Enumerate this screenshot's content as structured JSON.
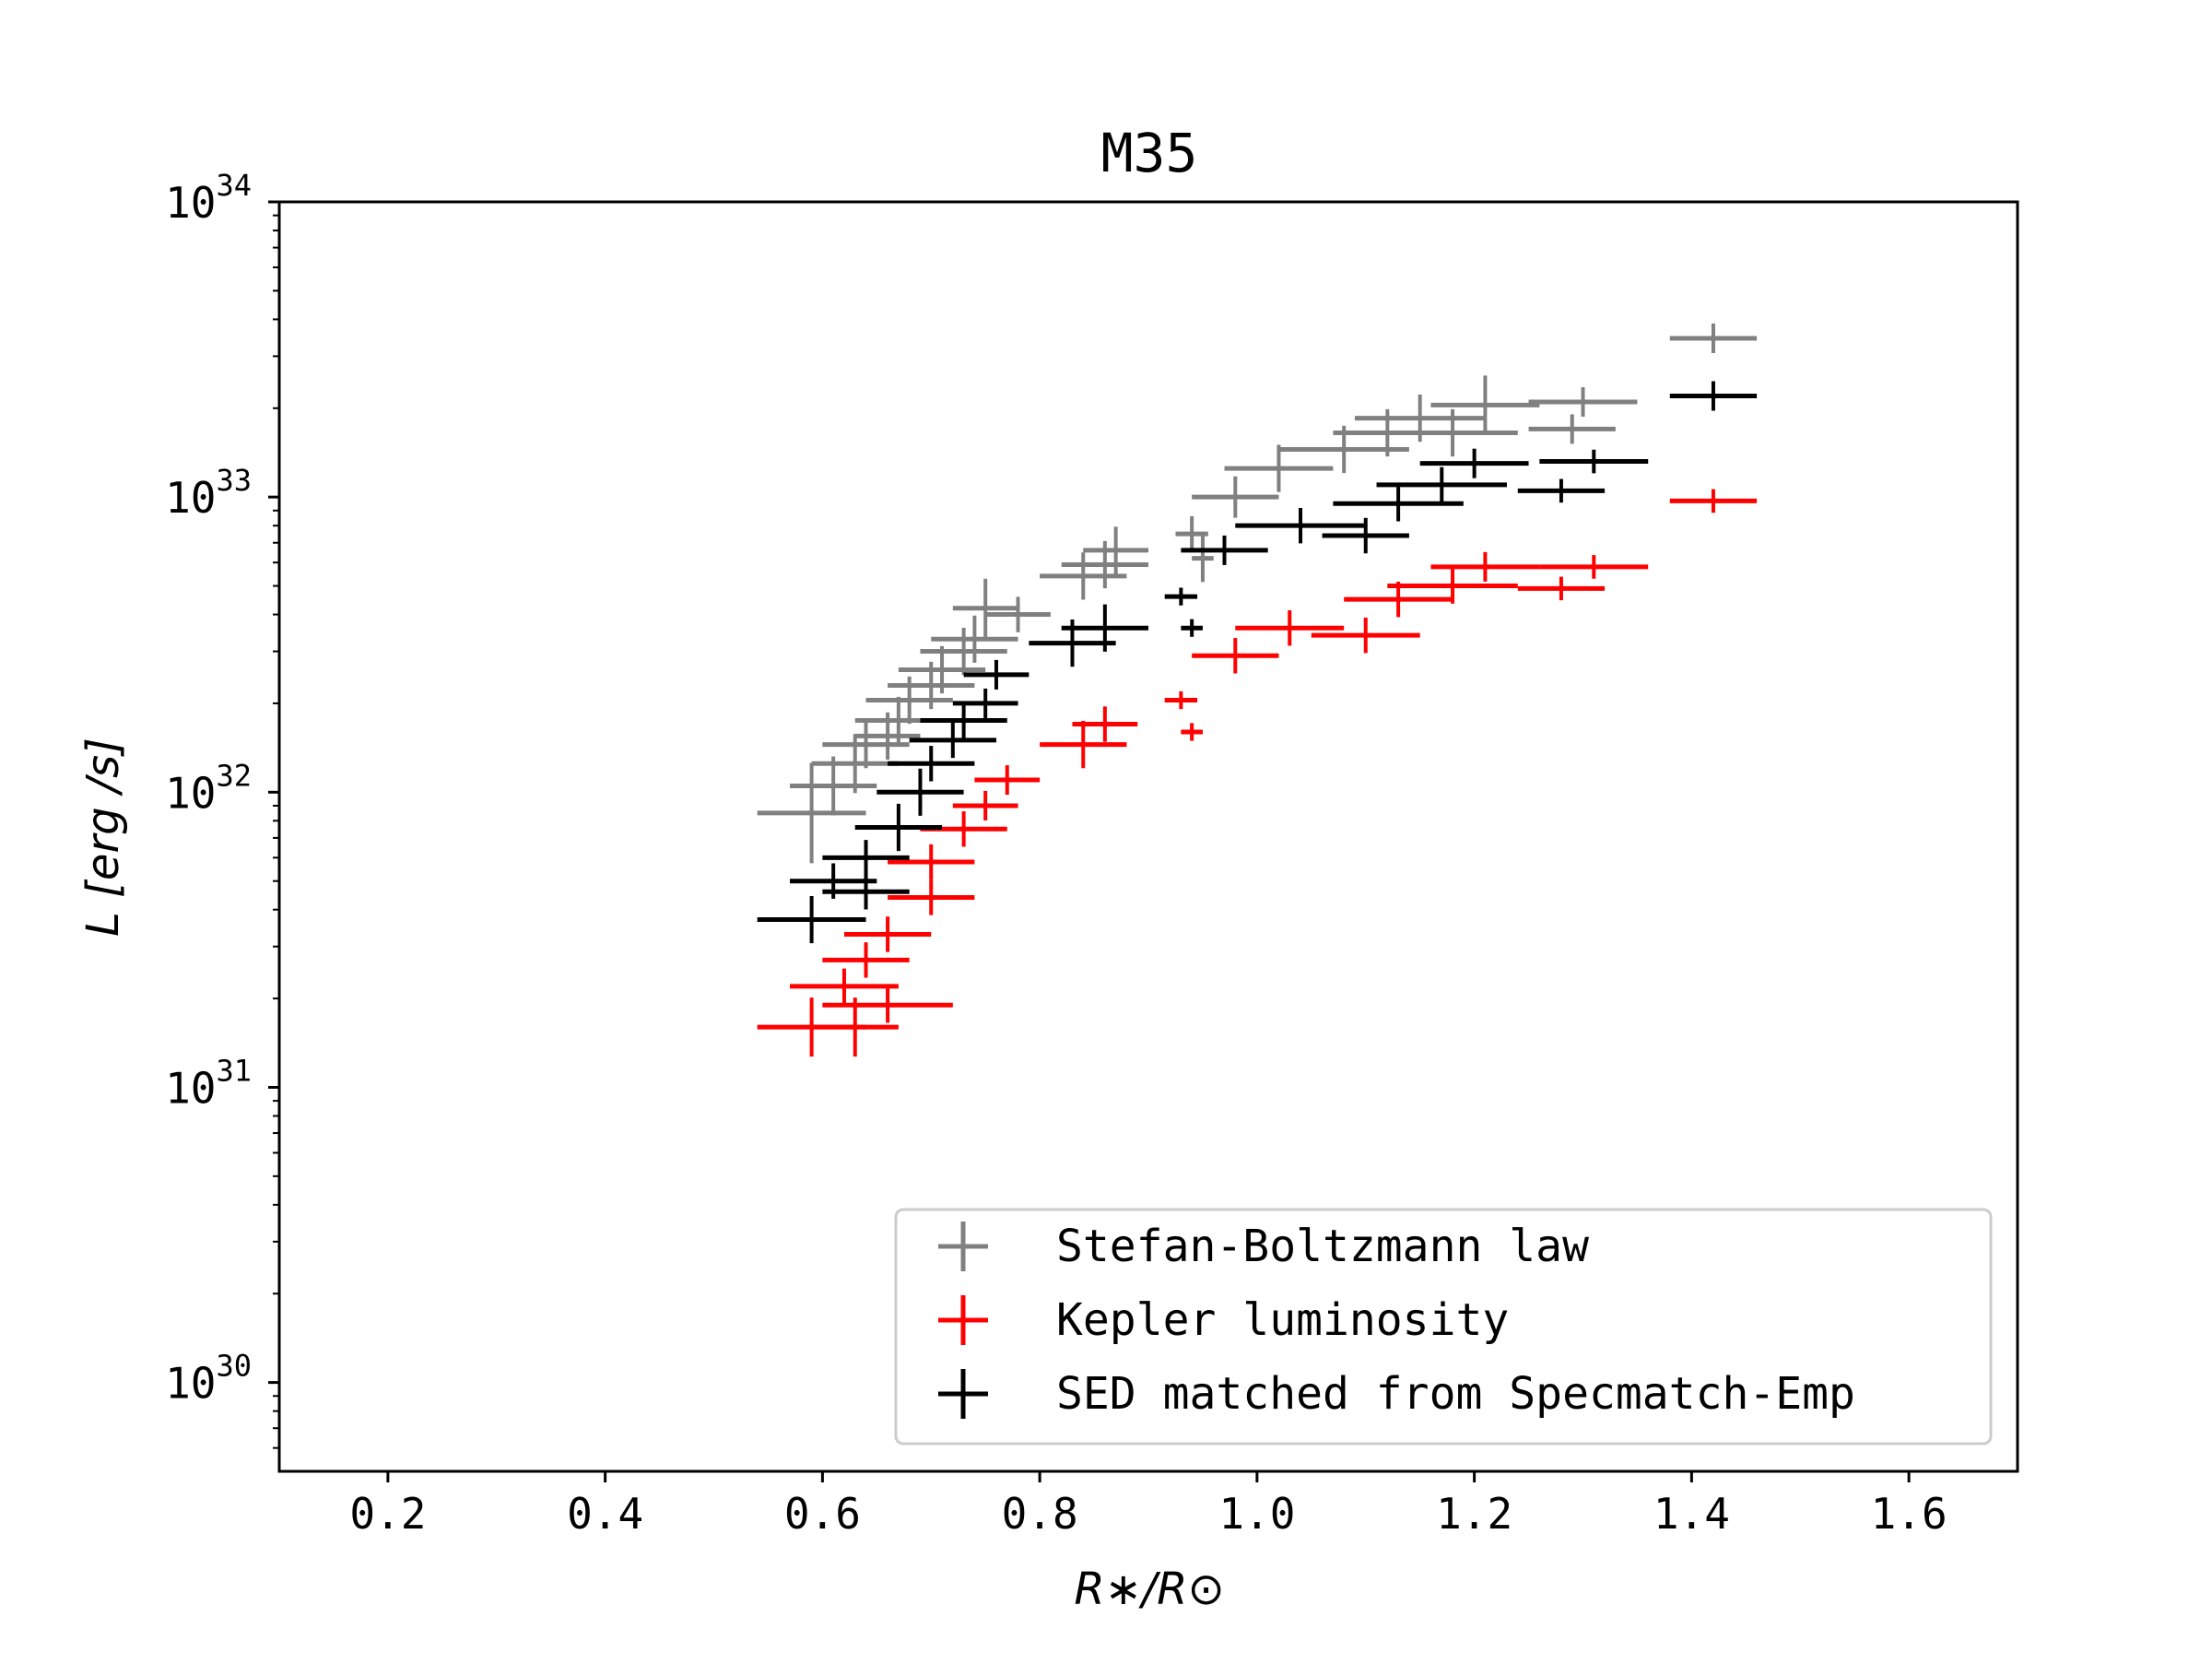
{
  "chart_data": {
    "type": "scatter",
    "title": "M35",
    "xlabel": "R∗/R⊙",
    "ylabel": "L [erg /s]",
    "x_scale": "linear",
    "y_scale": "log",
    "xlim": [
      0.1,
      1.7
    ],
    "ylim": [
      5e+29,
      1e+34
    ],
    "x_ticks": [
      0.2,
      0.4,
      0.6,
      0.8,
      1.0,
      1.2,
      1.4,
      1.6
    ],
    "x_tick_labels": [
      "0.2",
      "0.4",
      "0.6",
      "0.8",
      "1.0",
      "1.2",
      "1.4",
      "1.6"
    ],
    "y_ticks": [
      1e+30,
      1e+31,
      1e+32,
      1e+33,
      1e+34
    ],
    "y_tick_labels": [
      {
        "base": "10",
        "exp": "30"
      },
      {
        "base": "10",
        "exp": "31"
      },
      {
        "base": "10",
        "exp": "32"
      },
      {
        "base": "10",
        "exp": "33"
      },
      {
        "base": "10",
        "exp": "34"
      }
    ],
    "grid": false,
    "legend_position": "lower-right",
    "series": [
      {
        "name": "Stefan-Boltzmann law",
        "color": "#808080",
        "points": [
          {
            "x": 0.59,
            "y": 8.5e+31,
            "xerr": 0.05,
            "yerr": 0.17
          },
          {
            "x": 0.61,
            "y": 1.05e+32,
            "xerr": 0.04,
            "yerr": 0.1
          },
          {
            "x": 0.63,
            "y": 1.25e+32,
            "xerr": 0.04,
            "yerr": 0.1
          },
          {
            "x": 0.64,
            "y": 1.45e+32,
            "xerr": 0.04,
            "yerr": 0.08
          },
          {
            "x": 0.66,
            "y": 1.55e+32,
            "xerr": 0.03,
            "yerr": 0.08
          },
          {
            "x": 0.67,
            "y": 1.75e+32,
            "xerr": 0.04,
            "yerr": 0.08
          },
          {
            "x": 0.68,
            "y": 2.05e+32,
            "xerr": 0.04,
            "yerr": 0.08
          },
          {
            "x": 0.7,
            "y": 2.3e+32,
            "xerr": 0.04,
            "yerr": 0.08
          },
          {
            "x": 0.71,
            "y": 2.6e+32,
            "xerr": 0.04,
            "yerr": 0.08
          },
          {
            "x": 0.73,
            "y": 3e+32,
            "xerr": 0.04,
            "yerr": 0.08
          },
          {
            "x": 0.74,
            "y": 3.3e+32,
            "xerr": 0.04,
            "yerr": 0.08
          },
          {
            "x": 0.75,
            "y": 4.2e+32,
            "xerr": 0.03,
            "yerr": 0.1
          },
          {
            "x": 0.78,
            "y": 4e+32,
            "xerr": 0.03,
            "yerr": 0.06
          },
          {
            "x": 0.84,
            "y": 5.4e+32,
            "xerr": 0.04,
            "yerr": 0.08
          },
          {
            "x": 0.86,
            "y": 5.9e+32,
            "xerr": 0.04,
            "yerr": 0.08
          },
          {
            "x": 0.87,
            "y": 6.6e+32,
            "xerr": 0.03,
            "yerr": 0.08
          },
          {
            "x": 0.94,
            "y": 7.5e+32,
            "xerr": 0.015,
            "yerr": 0.06
          },
          {
            "x": 0.95,
            "y": 6.2e+32,
            "xerr": 0.01,
            "yerr": 0.08
          },
          {
            "x": 0.98,
            "y": 1e+33,
            "xerr": 0.04,
            "yerr": 0.07
          },
          {
            "x": 1.02,
            "y": 1.25e+33,
            "xerr": 0.05,
            "yerr": 0.08
          },
          {
            "x": 1.08,
            "y": 1.45e+33,
            "xerr": 0.06,
            "yerr": 0.08
          },
          {
            "x": 1.12,
            "y": 1.65e+33,
            "xerr": 0.05,
            "yerr": 0.08
          },
          {
            "x": 1.15,
            "y": 1.85e+33,
            "xerr": 0.06,
            "yerr": 0.08
          },
          {
            "x": 1.18,
            "y": 1.65e+33,
            "xerr": 0.06,
            "yerr": 0.08
          },
          {
            "x": 1.21,
            "y": 2.05e+33,
            "xerr": 0.05,
            "yerr": 0.1
          },
          {
            "x": 1.29,
            "y": 1.7e+33,
            "xerr": 0.04,
            "yerr": 0.05
          },
          {
            "x": 1.3,
            "y": 2.1e+33,
            "xerr": 0.05,
            "yerr": 0.05
          },
          {
            "x": 1.42,
            "y": 3.45e+33,
            "xerr": 0.04,
            "yerr": 0.05
          }
        ]
      },
      {
        "name": "Kepler luminosity",
        "color": "#ff0000",
        "points": [
          {
            "x": 0.59,
            "y": 1.6e+31,
            "xerr": 0.05,
            "yerr": 0.1
          },
          {
            "x": 0.63,
            "y": 1.6e+31,
            "xerr": 0.04,
            "yerr": 0.1
          },
          {
            "x": 0.62,
            "y": 2.2e+31,
            "xerr": 0.05,
            "yerr": 0.06
          },
          {
            "x": 0.66,
            "y": 1.9e+31,
            "xerr": 0.06,
            "yerr": 0.06
          },
          {
            "x": 0.64,
            "y": 2.7e+31,
            "xerr": 0.04,
            "yerr": 0.06
          },
          {
            "x": 0.66,
            "y": 3.3e+31,
            "xerr": 0.04,
            "yerr": 0.06
          },
          {
            "x": 0.7,
            "y": 4.4e+31,
            "xerr": 0.04,
            "yerr": 0.06
          },
          {
            "x": 0.7,
            "y": 5.8e+31,
            "xerr": 0.04,
            "yerr": 0.06
          },
          {
            "x": 0.73,
            "y": 7.5e+31,
            "xerr": 0.04,
            "yerr": 0.06
          },
          {
            "x": 0.75,
            "y": 9e+31,
            "xerr": 0.03,
            "yerr": 0.05
          },
          {
            "x": 0.77,
            "y": 1.1e+32,
            "xerr": 0.03,
            "yerr": 0.05
          },
          {
            "x": 0.84,
            "y": 1.45e+32,
            "xerr": 0.04,
            "yerr": 0.08
          },
          {
            "x": 0.86,
            "y": 1.7e+32,
            "xerr": 0.03,
            "yerr": 0.06
          },
          {
            "x": 0.93,
            "y": 2.05e+32,
            "xerr": 0.015,
            "yerr": 0.03
          },
          {
            "x": 0.94,
            "y": 1.6e+32,
            "xerr": 0.01,
            "yerr": 0.03
          },
          {
            "x": 0.98,
            "y": 2.9e+32,
            "xerr": 0.04,
            "yerr": 0.06
          },
          {
            "x": 1.03,
            "y": 3.6e+32,
            "xerr": 0.05,
            "yerr": 0.06
          },
          {
            "x": 1.1,
            "y": 3.4e+32,
            "xerr": 0.05,
            "yerr": 0.06
          },
          {
            "x": 1.13,
            "y": 4.5e+32,
            "xerr": 0.05,
            "yerr": 0.06
          },
          {
            "x": 1.18,
            "y": 5e+32,
            "xerr": 0.06,
            "yerr": 0.06
          },
          {
            "x": 1.21,
            "y": 5.8e+32,
            "xerr": 0.05,
            "yerr": 0.05
          },
          {
            "x": 1.28,
            "y": 4.9e+32,
            "xerr": 0.04,
            "yerr": 0.04
          },
          {
            "x": 1.31,
            "y": 5.8e+32,
            "xerr": 0.05,
            "yerr": 0.04
          },
          {
            "x": 1.42,
            "y": 9.7e+32,
            "xerr": 0.04,
            "yerr": 0.04
          }
        ]
      },
      {
        "name": "SED matched from Specmatch-Emp",
        "color": "#000000",
        "points": [
          {
            "x": 0.59,
            "y": 3.7e+31,
            "xerr": 0.05,
            "yerr": 0.08
          },
          {
            "x": 0.61,
            "y": 5e+31,
            "xerr": 0.04,
            "yerr": 0.06
          },
          {
            "x": 0.64,
            "y": 4.6e+31,
            "xerr": 0.04,
            "yerr": 0.06
          },
          {
            "x": 0.64,
            "y": 6e+31,
            "xerr": 0.04,
            "yerr": 0.06
          },
          {
            "x": 0.67,
            "y": 7.6e+31,
            "xerr": 0.04,
            "yerr": 0.08
          },
          {
            "x": 0.69,
            "y": 1e+32,
            "xerr": 0.04,
            "yerr": 0.08
          },
          {
            "x": 0.7,
            "y": 1.25e+32,
            "xerr": 0.04,
            "yerr": 0.06
          },
          {
            "x": 0.72,
            "y": 1.5e+32,
            "xerr": 0.04,
            "yerr": 0.06
          },
          {
            "x": 0.73,
            "y": 1.75e+32,
            "xerr": 0.04,
            "yerr": 0.06
          },
          {
            "x": 0.75,
            "y": 2e+32,
            "xerr": 0.03,
            "yerr": 0.05
          },
          {
            "x": 0.76,
            "y": 2.5e+32,
            "xerr": 0.03,
            "yerr": 0.05
          },
          {
            "x": 0.83,
            "y": 3.2e+32,
            "xerr": 0.04,
            "yerr": 0.08
          },
          {
            "x": 0.86,
            "y": 3.6e+32,
            "xerr": 0.04,
            "yerr": 0.08
          },
          {
            "x": 0.93,
            "y": 4.6e+32,
            "xerr": 0.015,
            "yerr": 0.03
          },
          {
            "x": 0.94,
            "y": 3.6e+32,
            "xerr": 0.01,
            "yerr": 0.03
          },
          {
            "x": 0.97,
            "y": 6.6e+32,
            "xerr": 0.04,
            "yerr": 0.05
          },
          {
            "x": 1.04,
            "y": 8e+32,
            "xerr": 0.06,
            "yerr": 0.06
          },
          {
            "x": 1.1,
            "y": 7.4e+32,
            "xerr": 0.04,
            "yerr": 0.06
          },
          {
            "x": 1.13,
            "y": 9.5e+32,
            "xerr": 0.06,
            "yerr": 0.06
          },
          {
            "x": 1.17,
            "y": 1.1e+33,
            "xerr": 0.06,
            "yerr": 0.06
          },
          {
            "x": 1.2,
            "y": 1.3e+33,
            "xerr": 0.05,
            "yerr": 0.05
          },
          {
            "x": 1.28,
            "y": 1.05e+33,
            "xerr": 0.04,
            "yerr": 0.04
          },
          {
            "x": 1.31,
            "y": 1.32e+33,
            "xerr": 0.05,
            "yerr": 0.04
          },
          {
            "x": 1.42,
            "y": 2.2e+33,
            "xerr": 0.04,
            "yerr": 0.05
          }
        ]
      }
    ]
  }
}
